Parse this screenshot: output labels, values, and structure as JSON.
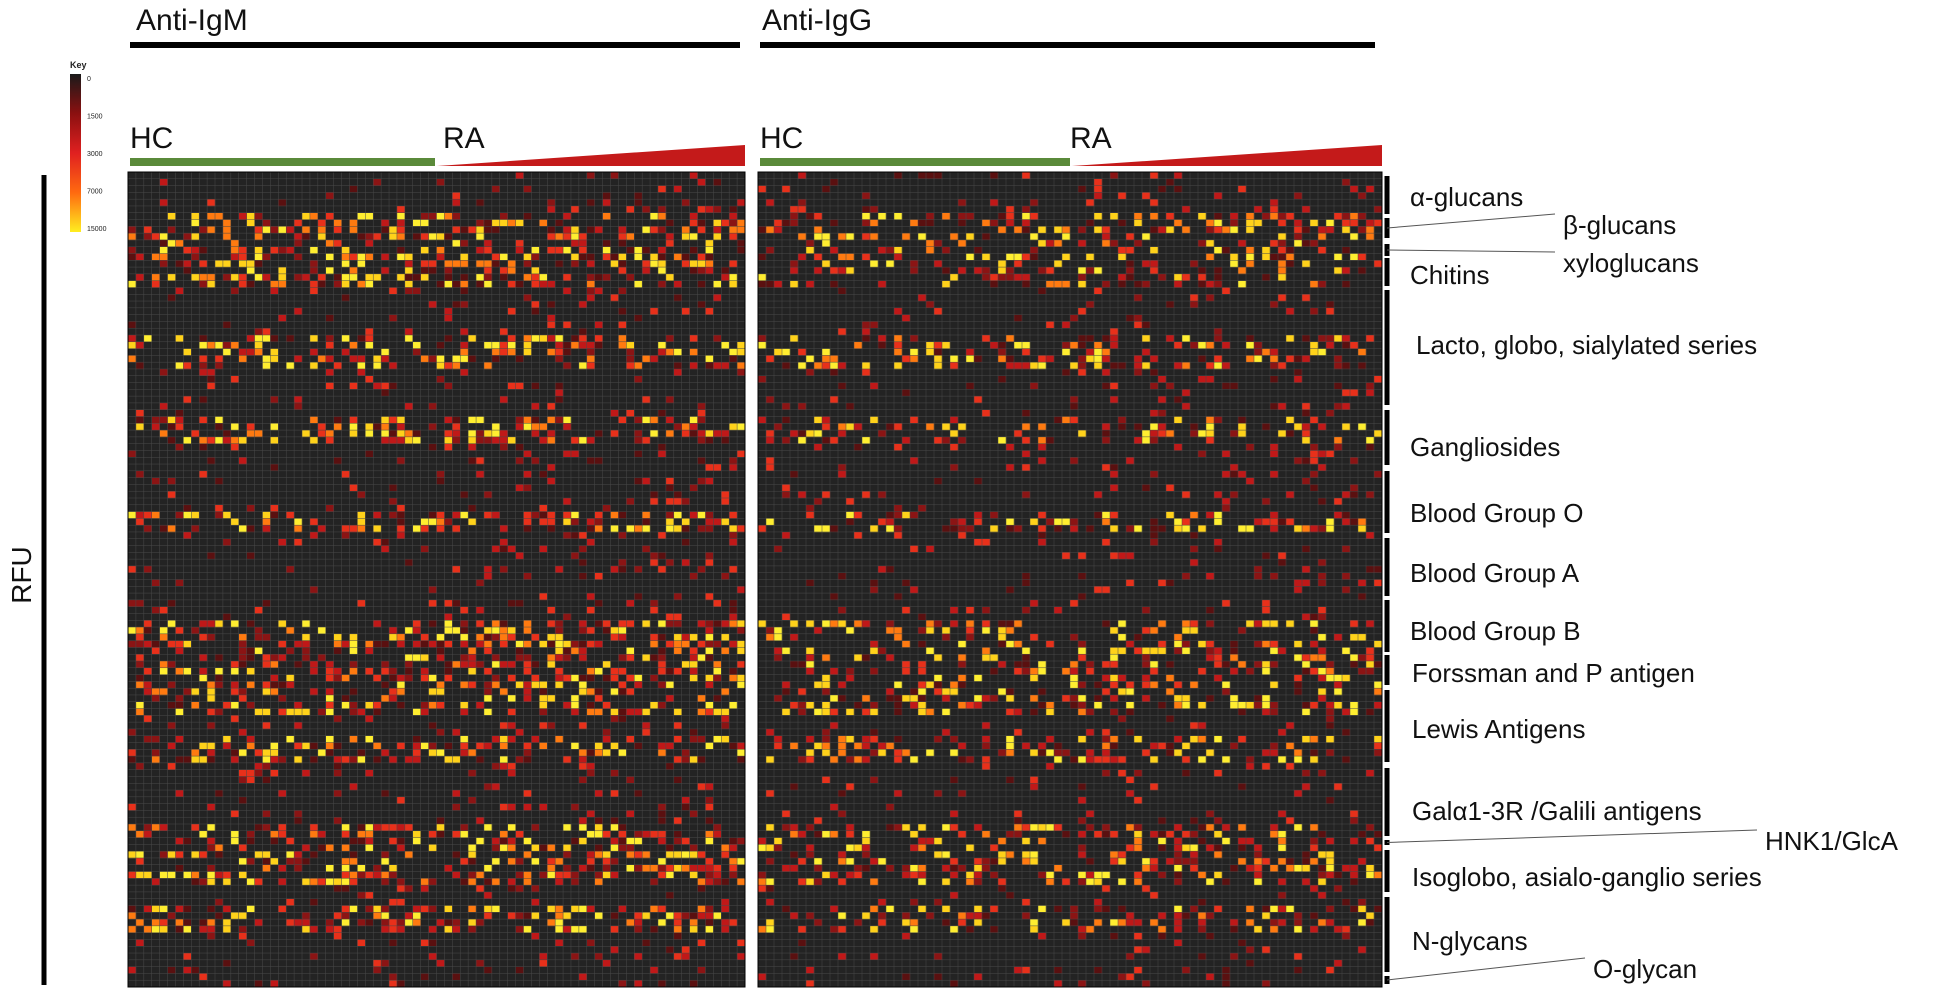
{
  "chart_data": {
    "type": "heatmap",
    "panels": [
      {
        "title": "Anti-IgM",
        "groups": [
          "HC",
          "RA"
        ]
      },
      {
        "title": "Anti-IgG",
        "groups": [
          "HC",
          "RA"
        ]
      }
    ],
    "ylabel": "RFU",
    "colorbar": {
      "title": "Key",
      "ticks": [
        "0",
        "1500",
        "3000",
        "7000",
        "15000"
      ],
      "colors": [
        "#1a1a1a",
        "#8b1010",
        "#e02020",
        "#ff6a10",
        "#ffee20"
      ]
    },
    "glycan_classes": [
      "α-glucans",
      "β-glucans",
      "xyloglucans",
      "Chitins",
      "Lacto, globo, sialylated series",
      "Gangliosides",
      "Blood Group O",
      "Blood Group A",
      "Blood Group B",
      "Forssman and P antigen",
      "Lewis Antigens",
      "Galα1-3R /Galili antigens",
      "HNK1/GlcA",
      "Isoglobo, asialo-ganglio series",
      "N-glycans",
      "O-glycan"
    ]
  }
}
